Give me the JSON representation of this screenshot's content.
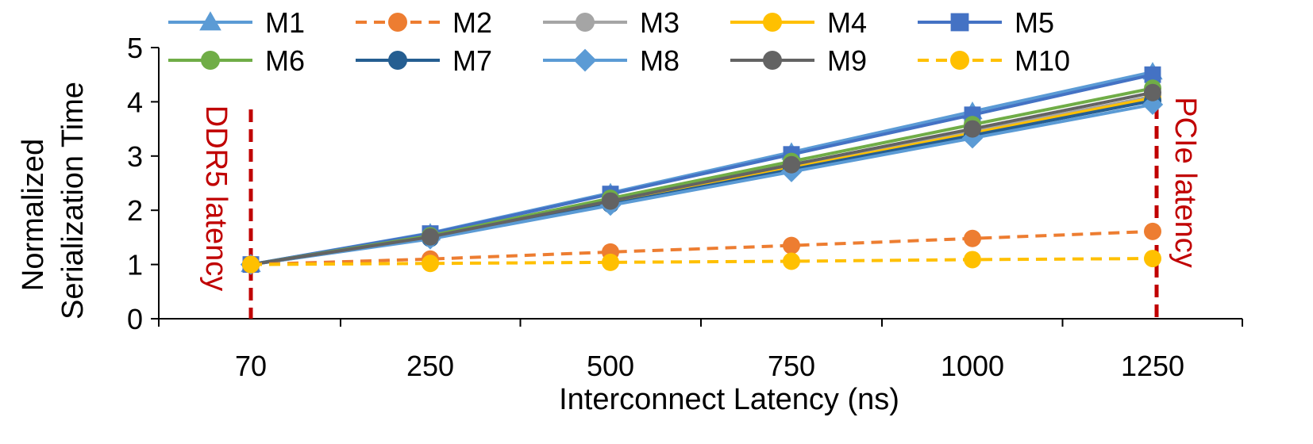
{
  "chart_data": {
    "type": "line",
    "xlabel": "Interconnect Latency (ns)",
    "ylabel_lines": [
      "Normalized",
      "Serialization Time"
    ],
    "categories": [
      "70",
      "250",
      "500",
      "750",
      "1000",
      "1250"
    ],
    "ylim": [
      0,
      5
    ],
    "yticks": [
      "0",
      "1",
      "2",
      "3",
      "4",
      "5"
    ],
    "grid": false,
    "legend_position": "top",
    "series": [
      {
        "name": "M1",
        "color": "#5B9BD5",
        "marker": "triangle",
        "dash": false,
        "values": [
          1.0,
          1.58,
          2.32,
          3.07,
          3.82,
          4.55
        ]
      },
      {
        "name": "M2",
        "color": "#ED7D31",
        "marker": "circle",
        "dash": true,
        "values": [
          1.0,
          1.1,
          1.23,
          1.35,
          1.48,
          1.61
        ]
      },
      {
        "name": "M3",
        "color": "#A5A5A5",
        "marker": "circle",
        "dash": false,
        "values": [
          1.0,
          1.5,
          2.15,
          2.8,
          3.45,
          4.1
        ]
      },
      {
        "name": "M4",
        "color": "#FFC000",
        "marker": "circle",
        "dash": false,
        "values": [
          1.0,
          1.49,
          2.13,
          2.78,
          3.42,
          4.07
        ]
      },
      {
        "name": "M5",
        "color": "#4472C4",
        "marker": "square",
        "dash": false,
        "values": [
          1.0,
          1.57,
          2.3,
          3.03,
          3.76,
          4.5
        ]
      },
      {
        "name": "M6",
        "color": "#70AD47",
        "marker": "circle",
        "dash": false,
        "values": [
          1.0,
          1.53,
          2.22,
          2.9,
          3.58,
          4.25
        ]
      },
      {
        "name": "M7",
        "color": "#255E91",
        "marker": "circle",
        "dash": false,
        "values": [
          1.0,
          1.48,
          2.11,
          2.75,
          3.38,
          4.02
        ]
      },
      {
        "name": "M8",
        "color": "#5B9BD5",
        "marker": "diamond",
        "dash": false,
        "values": [
          1.0,
          1.47,
          2.09,
          2.71,
          3.33,
          3.95
        ]
      },
      {
        "name": "M9",
        "color": "#636363",
        "marker": "circle",
        "dash": false,
        "values": [
          1.0,
          1.51,
          2.17,
          2.84,
          3.5,
          4.17
        ]
      },
      {
        "name": "M10",
        "color": "#FFC000",
        "marker": "circle",
        "dash": true,
        "values": [
          1.0,
          1.02,
          1.04,
          1.06,
          1.09,
          1.11
        ]
      }
    ],
    "annotations": [
      {
        "text": "DDR5 latency",
        "at_category": "70",
        "side": "left",
        "color": "#C00000"
      },
      {
        "text": "PCIe latency",
        "at_category": "1250",
        "side": "right",
        "color": "#C00000"
      }
    ]
  }
}
